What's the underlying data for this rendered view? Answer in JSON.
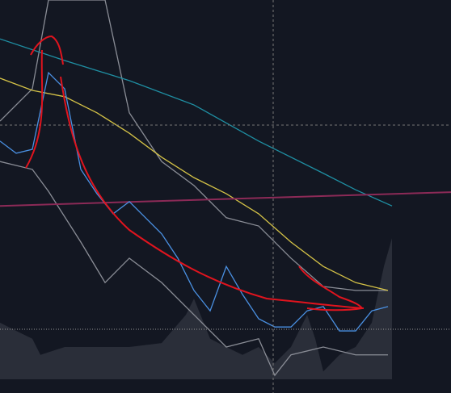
{
  "chart_data": {
    "type": "line",
    "xlim": [
      0,
      558
    ],
    "ylim": [
      0,
      100
    ],
    "series": [
      {
        "kind": "area",
        "color": "#2a2e39",
        "x": [
          0,
          20,
          40,
          50,
          80,
          120,
          160,
          200,
          230,
          240,
          260,
          280,
          300,
          320,
          340,
          360,
          380,
          390,
          400,
          420,
          440,
          460,
          475,
          485
        ],
        "values": [
          17.9,
          15.8,
          13.8,
          9.7,
          11.7,
          11.7,
          11.7,
          12.7,
          19.9,
          24.0,
          13.8,
          11.7,
          9.7,
          11.7,
          7.6,
          11.7,
          19.9,
          13.8,
          5.5,
          9.7,
          11.7,
          17.9,
          32.2,
          39.4
        ]
      },
      {
        "kind": "line",
        "color": "#8a8d96",
        "x": [
          0,
          40,
          60,
          130,
          160,
          200,
          240,
          280,
          320,
          360,
          400,
          440,
          480
        ],
        "values": [
          69.2,
          77.4,
          100,
          100,
          71.3,
          58.9,
          52.8,
          44.6,
          42.5,
          34.3,
          27.1,
          26.1,
          26.1
        ]
      },
      {
        "kind": "line",
        "color": "#8a8d96",
        "x": [
          0,
          40,
          60,
          100,
          130,
          160,
          200,
          240,
          280,
          320,
          340,
          360,
          400,
          440,
          480
        ],
        "values": [
          58.9,
          56.9,
          51.3,
          38.4,
          28.1,
          34.3,
          28.1,
          19.9,
          11.7,
          13.8,
          4.5,
          9.7,
          11.7,
          9.7,
          9.7
        ]
      },
      {
        "kind": "line",
        "color": "#d4c247",
        "x": [
          0,
          40,
          80,
          120,
          160,
          200,
          240,
          280,
          320,
          360,
          400,
          440,
          480
        ],
        "values": [
          80.1,
          77.0,
          75.4,
          71.3,
          66.1,
          60.0,
          54.8,
          50.7,
          45.6,
          38.4,
          32.2,
          28.1,
          26.1
        ]
      },
      {
        "kind": "line",
        "color": "#1f8fa3",
        "x": [
          0,
          80,
          160,
          240,
          320,
          400,
          440,
          485
        ],
        "values": [
          90.1,
          84.6,
          79.5,
          73.3,
          64.1,
          55.9,
          51.7,
          47.6
        ]
      },
      {
        "kind": "line",
        "color": "#8c2a57",
        "x": [
          0,
          558
        ],
        "values": [
          47.6,
          51.1
        ]
      },
      {
        "kind": "line",
        "color": "#4a90e2",
        "x": [
          0,
          20,
          40,
          60,
          80,
          100,
          120,
          140,
          160,
          180,
          200,
          220,
          240,
          260,
          280,
          300,
          320,
          340,
          360,
          380,
          400,
          420,
          440,
          460,
          480
        ],
        "values": [
          64.1,
          61.0,
          62.0,
          81.5,
          77.4,
          56.9,
          50.7,
          45.6,
          48.7,
          44.6,
          40.5,
          34.3,
          26.1,
          20.9,
          32.2,
          25.1,
          18.9,
          16.8,
          16.8,
          20.9,
          22.0,
          15.8,
          15.8,
          20.9,
          22.0
        ]
      }
    ]
  }
}
